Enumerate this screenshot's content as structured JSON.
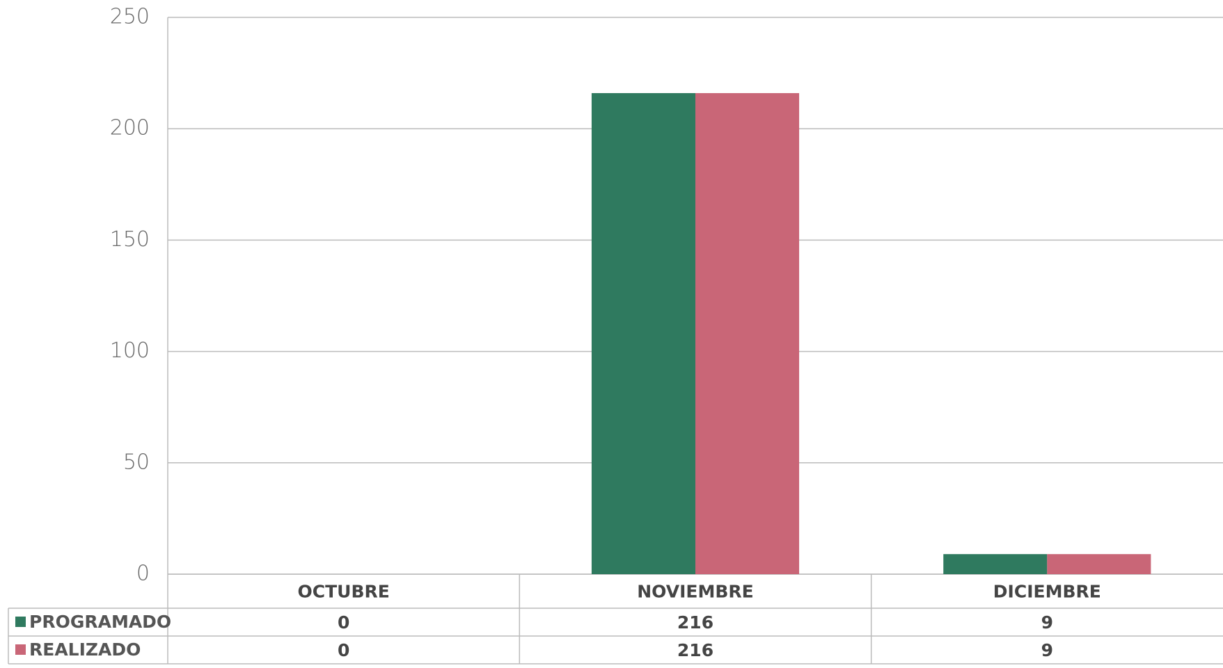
{
  "chart_data": {
    "type": "bar",
    "categories": [
      "OCTUBRE",
      "NOVIEMBRE",
      "DICIEMBRE"
    ],
    "series": [
      {
        "name": "PROGRAMADO",
        "color": "#2f7a5f",
        "values": [
          0,
          216,
          9
        ]
      },
      {
        "name": "REALIZADO",
        "color": "#c96677",
        "values": [
          0,
          216,
          9
        ]
      }
    ],
    "ylim": [
      0,
      250
    ],
    "yticks": [
      0,
      50,
      100,
      150,
      200,
      250
    ],
    "grid": true
  }
}
